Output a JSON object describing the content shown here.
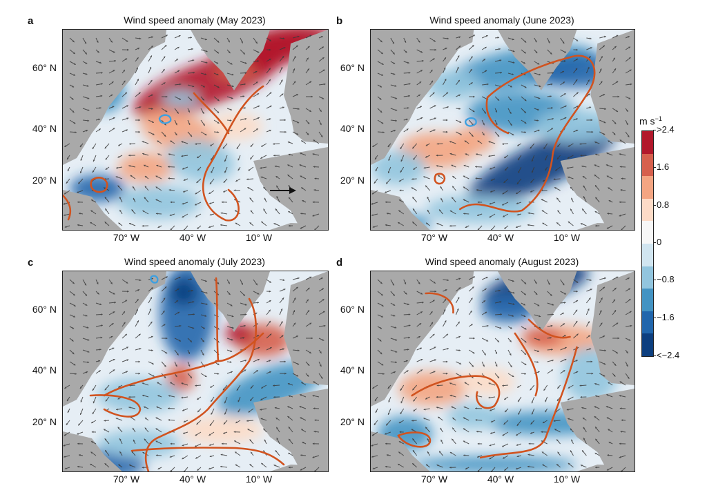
{
  "panels": [
    {
      "letter": "a",
      "title": "Wind speed anomaly (May 2023)"
    },
    {
      "letter": "b",
      "title": "Wind speed anomaly (June 2023)"
    },
    {
      "letter": "c",
      "title": "Wind speed anomaly (July 2023)"
    },
    {
      "letter": "d",
      "title": "Wind speed anomaly (August 2023)"
    }
  ],
  "lat_labels": [
    "60° N",
    "40° N",
    "20° N"
  ],
  "lon_labels": [
    "70° W",
    "40° W",
    "10° W"
  ],
  "colorbar": {
    "unit_base": "m s",
    "unit_exp": "−1",
    "tick_labels": [
      ">2.4",
      "1.6",
      "0.8",
      "0",
      "−0.8",
      "−1.6",
      "<−2.4"
    ],
    "colors": [
      "#b2182b",
      "#d6604d",
      "#f4a582",
      "#fddbc7",
      "#f7f7f7",
      "#d1e5f0",
      "#92c5de",
      "#4393c3",
      "#2166ac",
      "#0d3f7f"
    ]
  },
  "colors": {
    "land": "#a9a9a9",
    "contour": "#d1531f",
    "neg_contour": "#3ea0e0",
    "arrow": "#3a3a3a"
  }
}
